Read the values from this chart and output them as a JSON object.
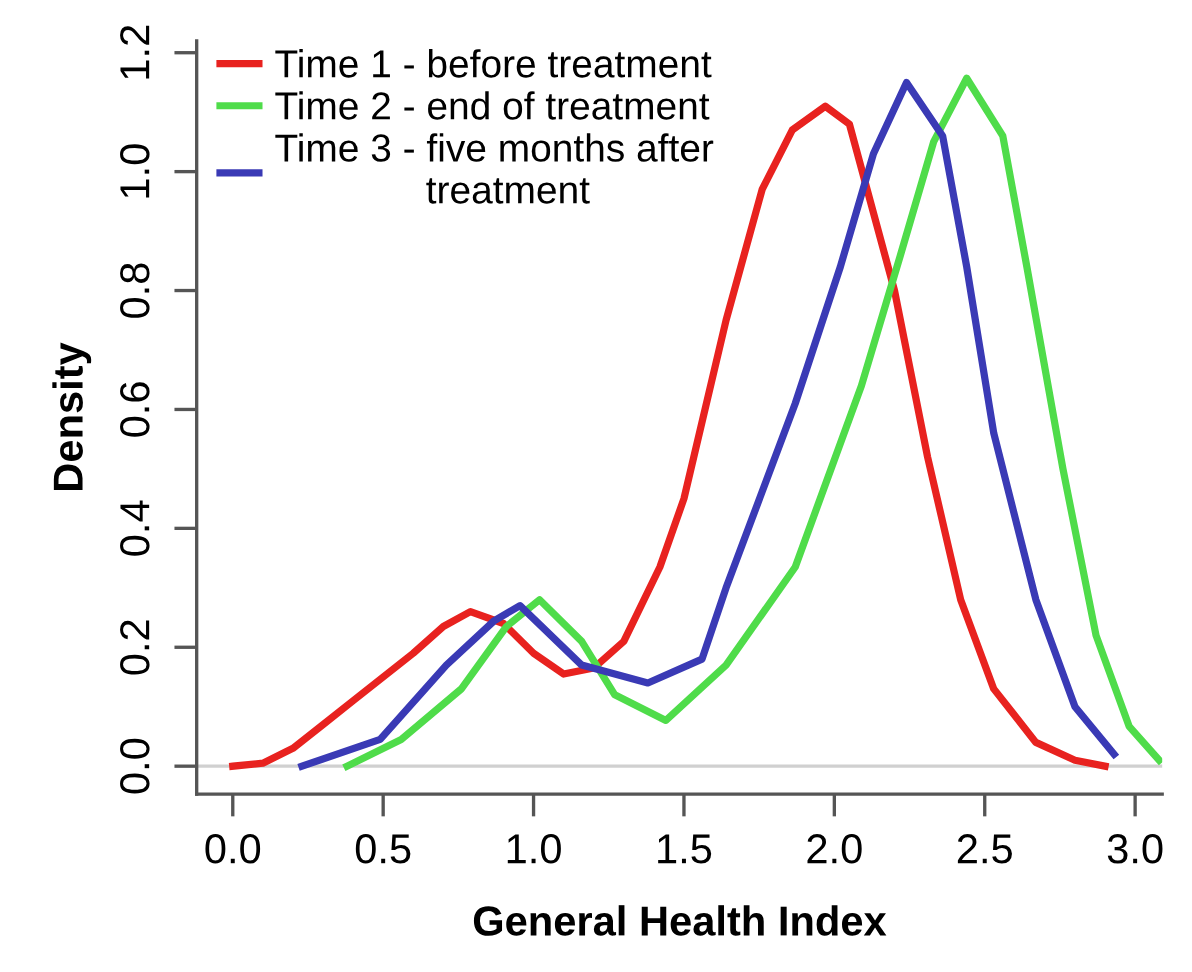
{
  "chart_data": {
    "type": "line",
    "xlabel": "General Health Index",
    "ylabel": "Density",
    "xlim": [
      -0.12,
      3.09
    ],
    "ylim": [
      -0.047,
      1.22
    ],
    "xticks": [
      {
        "value": 0,
        "label": "0.0"
      },
      0.5,
      {
        "value": 1,
        "label": "1.0"
      },
      1.5,
      {
        "value": 2,
        "label": "2.0"
      },
      2.5,
      {
        "value": 3,
        "label": "3.0"
      }
    ],
    "yticks": [
      {
        "value": 0,
        "label": "0.0"
      },
      0.2,
      0.4,
      0.6,
      0.8,
      {
        "value": 1,
        "label": "1.0"
      },
      1.2
    ],
    "grid": false,
    "legend": "top left",
    "line_style": "solid",
    "marker": "none",
    "ref_lines": [
      {
        "axis": "y",
        "value": 0,
        "color": "#d0d0d0"
      }
    ],
    "series": [
      {
        "name": "Time 1 - before treatment",
        "color": "#e8221f",
        "x": [
          0,
          0.1,
          0.2,
          0.3,
          0.4,
          0.5,
          0.6,
          0.7,
          0.79,
          0.9,
          1.0,
          1.1,
          1.2,
          1.3,
          1.42,
          1.5,
          1.64,
          1.76,
          1.86,
          1.97,
          2.05,
          2.2,
          2.31,
          2.42,
          2.53,
          2.67,
          2.8,
          2.9
        ],
        "values": [
          0,
          0.005,
          0.03,
          0.07,
          0.11,
          0.15,
          0.19,
          0.235,
          0.26,
          0.24,
          0.19,
          0.155,
          0.165,
          0.21,
          0.335,
          0.45,
          0.75,
          0.97,
          1.07,
          1.11,
          1.08,
          0.8,
          0.52,
          0.28,
          0.13,
          0.04,
          0.01,
          0
        ]
      },
      {
        "name": "Time 2 - end of treatment",
        "color": "#4fdc4a",
        "x": [
          0.38,
          0.56,
          0.76,
          0.91,
          1.02,
          1.16,
          1.27,
          1.44,
          1.64,
          1.87,
          2.09,
          2.22,
          2.33,
          2.44,
          2.56,
          2.64,
          2.76,
          2.87,
          2.98,
          3.08
        ],
        "values": [
          0,
          0.045,
          0.13,
          0.235,
          0.28,
          0.21,
          0.12,
          0.077,
          0.17,
          0.335,
          0.64,
          0.86,
          1.05,
          1.157,
          1.06,
          0.84,
          0.5,
          0.22,
          0.067,
          0.01
        ]
      },
      {
        "name": "Time 3 - five months after\n              treatment",
        "color": "#3a3ab5",
        "x": [
          0.23,
          0.49,
          0.71,
          0.87,
          0.955,
          1.16,
          1.38,
          1.56,
          1.64,
          1.87,
          2.02,
          2.13,
          2.24,
          2.36,
          2.44,
          2.53,
          2.67,
          2.8,
          2.93
        ],
        "values": [
          0,
          0.045,
          0.17,
          0.245,
          0.27,
          0.17,
          0.14,
          0.18,
          0.3,
          0.61,
          0.84,
          1.03,
          1.15,
          1.06,
          0.84,
          0.56,
          0.28,
          0.1,
          0.02
        ]
      }
    ]
  }
}
